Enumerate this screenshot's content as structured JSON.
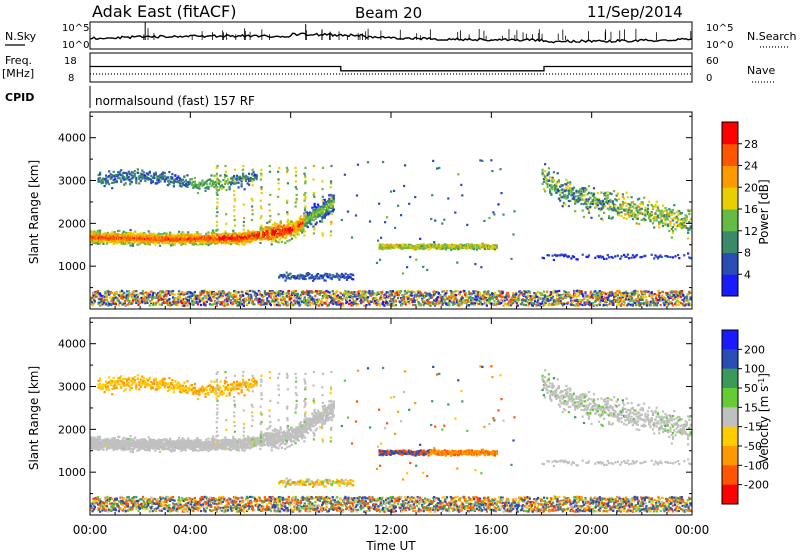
{
  "header": {
    "title": "Adak East (fitACF)",
    "beam": "Beam 20",
    "date": "11/Sep/2014"
  },
  "strips": {
    "nsky_label": "N.Sky",
    "nsky_tick_hi": "10^5",
    "nsky_tick_lo": "10^0",
    "nsearch_label": "N.Search",
    "nsearch_tick_hi": "10^5",
    "nsearch_tick_lo": "10^0",
    "freq_label": "Freq.",
    "freq_unit": "[MHz]",
    "freq_tick_hi": "18",
    "freq_tick_lo": "8",
    "nave_label": "Nave",
    "nave_tick_hi": "60",
    "nave_tick_lo": "0",
    "cpid_label": "CPID",
    "cpid_text": "normalsound (fast) 157 RF"
  },
  "chart_data": [
    {
      "type": "heatmap",
      "name": "power",
      "xlabel": "Time UT",
      "ylabel": "Slant Range [km]",
      "xlim": [
        0,
        24
      ],
      "ylim": [
        0,
        4600
      ],
      "x_ticks": [
        "00:00",
        "04:00",
        "08:00",
        "12:00",
        "16:00",
        "20:00",
        "00:00"
      ],
      "y_ticks": [
        "1000",
        "2000",
        "3000",
        "4000"
      ],
      "colorbar_label": "Power [dB]",
      "colorbar_ticks": [
        "4",
        "8",
        "12",
        "16",
        "20",
        "24",
        "28"
      ],
      "colorbar_colors": [
        "#1a1aff",
        "#2a4db5",
        "#3a8a6a",
        "#66bb44",
        "#e8d000",
        "#ff9900",
        "#ff5500",
        "#ff0000"
      ],
      "features": [
        {
          "desc": "F-region band",
          "t_start": 0,
          "t_end": 9.6,
          "range_center": [
            1720,
            1650,
            1600,
            1700,
            1900,
            2400
          ],
          "intensity": "high"
        },
        {
          "desc": "upper band",
          "t_start": 0.3,
          "t_end": 6.5,
          "range_center": [
            3050,
            2900,
            3100,
            3300
          ],
          "intensity": "low"
        },
        {
          "desc": "midday echoes",
          "t_start": 12,
          "t_end": 16,
          "range_center": [
            1450
          ],
          "intensity": "medium"
        },
        {
          "desc": "evening band",
          "t_start": 18,
          "t_end": 24,
          "range_center": [
            2900,
            2300,
            2000
          ],
          "intensity": "medium"
        }
      ]
    },
    {
      "type": "heatmap",
      "name": "velocity",
      "xlabel": "Time UT",
      "ylabel": "Slant Range [km]",
      "xlim": [
        0,
        24
      ],
      "ylim": [
        0,
        4600
      ],
      "x_ticks": [
        "00:00",
        "04:00",
        "08:00",
        "12:00",
        "16:00",
        "20:00",
        "00:00"
      ],
      "y_ticks": [
        "1000",
        "2000",
        "3000",
        "4000"
      ],
      "colorbar_label": "Velocity [m s^-1]",
      "colorbar_ticks": [
        "200",
        "100",
        "50",
        "15",
        "-15",
        "-50",
        "-100",
        "-200"
      ],
      "colorbar_colors": [
        "#1a1aff",
        "#2a4db5",
        "#3a9a5a",
        "#66cc33",
        "#c0c0c0",
        "#ffcc00",
        "#ff9900",
        "#ff5500",
        "#ff0000"
      ]
    }
  ],
  "strip_data": {
    "freq_mhz": [
      {
        "t": 0,
        "v": 13.0
      },
      {
        "t": 10,
        "v": 10.8
      },
      {
        "t": 18.1,
        "v": 13.0
      },
      {
        "t": 24,
        "v": 13.0
      }
    ],
    "nave": [
      {
        "t": 0,
        "v": 10
      },
      {
        "t": 24,
        "v": 10
      }
    ]
  },
  "colors": {
    "gray_scatter": "#c0c0c0",
    "axis": "#000000"
  }
}
